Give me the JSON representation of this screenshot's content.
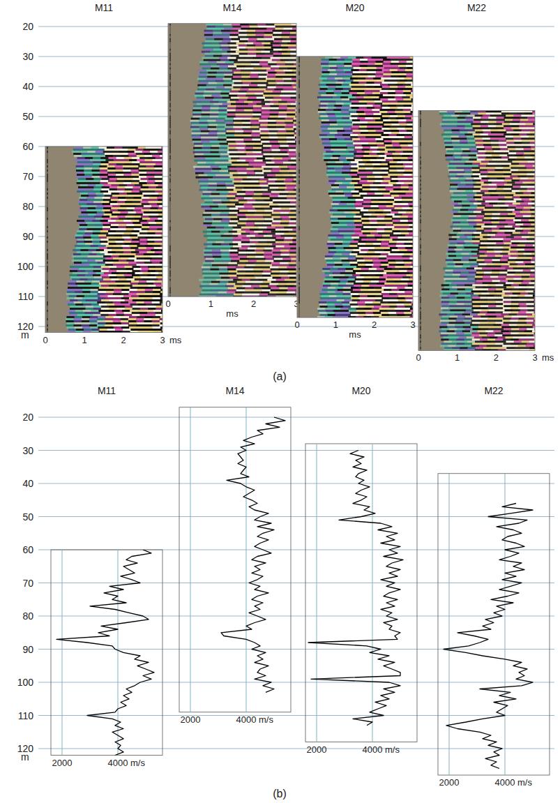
{
  "chart_data": [
    {
      "type": "image",
      "caption": "(a)",
      "grid": true,
      "ylim": [
        20,
        120
      ],
      "yticks": [
        20,
        30,
        40,
        50,
        60,
        70,
        80,
        90,
        100,
        110,
        120
      ],
      "y_label": "m",
      "panels": [
        {
          "title": "M11",
          "ylim": [
            60,
            122
          ],
          "xlim": [
            0,
            3
          ],
          "xticks": [
            0,
            1,
            2,
            3
          ],
          "x_label": "ms"
        },
        {
          "title": "M14",
          "ylim": [
            19,
            110
          ],
          "xlim": [
            0,
            3
          ],
          "xticks": [
            0,
            1,
            2,
            3
          ],
          "x_label": "ms"
        },
        {
          "title": "M20",
          "ylim": [
            30,
            117
          ],
          "xlim": [
            0,
            3
          ],
          "xticks": [
            0,
            1,
            2,
            3
          ],
          "x_label": "ms"
        },
        {
          "title": "M22",
          "ylim": [
            48,
            128
          ],
          "xlim": [
            0,
            3
          ],
          "xticks": [
            0,
            1,
            2,
            3
          ],
          "x_label": "ms"
        }
      ]
    },
    {
      "type": "line",
      "caption": "(b)",
      "grid": true,
      "ylim": [
        20,
        120
      ],
      "yticks": [
        20,
        30,
        40,
        50,
        60,
        70,
        80,
        90,
        100,
        110,
        120
      ],
      "y_label": "m",
      "panels": [
        {
          "title": "M11",
          "ylim": [
            60,
            122
          ],
          "xlim": [
            1600,
            5600
          ],
          "xticks": [
            2000,
            {
              "value": 4000,
              "label": "4000 m/s"
            }
          ],
          "color": "#000000",
          "depth": [
            60,
            61,
            62,
            63,
            64,
            65,
            66,
            67,
            68,
            69,
            70,
            71,
            72,
            73,
            74,
            75,
            76,
            77,
            78,
            79,
            80,
            81,
            82,
            83,
            84,
            85,
            86,
            87,
            88,
            89,
            90,
            91,
            92,
            93,
            94,
            95,
            96,
            97,
            98,
            99,
            100,
            101,
            102,
            103,
            104,
            105,
            106,
            107,
            108,
            109,
            110,
            111,
            112,
            113,
            114,
            115,
            116,
            117,
            118,
            119,
            120,
            121,
            122
          ],
          "values": [
            4900,
            5200,
            4500,
            4300,
            4700,
            4200,
            4400,
            4600,
            4100,
            4500,
            4800,
            3700,
            4200,
            3500,
            4000,
            3800,
            4300,
            3000,
            3900,
            4400,
            4900,
            5100,
            4300,
            3400,
            4000,
            3300,
            3700,
            1800,
            2900,
            3800,
            3900,
            4200,
            4800,
            4600,
            5100,
            4700,
            5000,
            5300,
            4900,
            5200,
            4800,
            4600,
            4300,
            4500,
            4200,
            4400,
            4100,
            4300,
            4000,
            3900,
            2900,
            3800,
            4100,
            3900,
            4200,
            3800,
            4000,
            4200,
            3900,
            4100,
            4000,
            4200,
            3900
          ]
        },
        {
          "title": "M14",
          "ylim": [
            17,
            109
          ],
          "xlim": [
            1600,
            5600
          ],
          "xticks": [
            2000,
            {
              "value": 4000,
              "label": "4000 m/s"
            }
          ],
          "color": "#000000",
          "depth": [
            20,
            21,
            22,
            23,
            24,
            25,
            26,
            27,
            28,
            29,
            30,
            31,
            32,
            33,
            34,
            35,
            36,
            37,
            38,
            39,
            40,
            41,
            42,
            43,
            44,
            45,
            46,
            47,
            48,
            49,
            50,
            51,
            52,
            53,
            54,
            55,
            56,
            57,
            58,
            59,
            60,
            61,
            62,
            63,
            64,
            65,
            66,
            67,
            68,
            69,
            70,
            71,
            72,
            73,
            74,
            75,
            76,
            77,
            78,
            79,
            80,
            81,
            82,
            83,
            84,
            85,
            86,
            87,
            88,
            89,
            90,
            91,
            92,
            93,
            94,
            95,
            96,
            97,
            98,
            99,
            100,
            101,
            102,
            103
          ],
          "values": [
            5000,
            5400,
            4700,
            5200,
            4400,
            4600,
            4200,
            3900,
            4300,
            3800,
            4000,
            3700,
            3800,
            3900,
            3700,
            4000,
            3900,
            3800,
            4100,
            3300,
            3800,
            4000,
            4300,
            4100,
            3900,
            4200,
            4400,
            4100,
            4300,
            4800,
            4500,
            4300,
            4900,
            4400,
            5000,
            4600,
            4400,
            4800,
            4500,
            4300,
            4600,
            4900,
            4400,
            4200,
            4700,
            4300,
            4500,
            4200,
            4600,
            4400,
            4100,
            4500,
            4300,
            4800,
            4400,
            4200,
            4600,
            4300,
            4500,
            4100,
            4400,
            4700,
            4300,
            4000,
            4200,
            3100,
            3200,
            4000,
            4300,
            4500,
            4200,
            4700,
            4400,
            4600,
            4300,
            4800,
            4500,
            4400,
            4700,
            4300,
            4900,
            4600,
            5000,
            4700
          ]
        },
        {
          "title": "M20",
          "ylim": [
            28,
            118
          ],
          "xlim": [
            1600,
            5600
          ],
          "xticks": [
            2000,
            {
              "value": 4000,
              "label": "4000 m/s"
            }
          ],
          "color": "#000000",
          "depth": [
            30,
            31,
            32,
            33,
            34,
            35,
            36,
            37,
            38,
            39,
            40,
            41,
            42,
            43,
            44,
            45,
            46,
            47,
            48,
            49,
            50,
            51,
            52,
            53,
            54,
            55,
            56,
            57,
            58,
            59,
            60,
            61,
            62,
            63,
            64,
            65,
            66,
            67,
            68,
            69,
            70,
            71,
            72,
            73,
            74,
            75,
            76,
            77,
            78,
            79,
            80,
            81,
            82,
            83,
            84,
            85,
            86,
            87,
            88,
            89,
            90,
            91,
            92,
            93,
            94,
            95,
            96,
            97,
            98,
            99,
            100,
            101,
            102,
            103,
            104,
            105,
            106,
            107,
            108,
            109,
            110,
            111,
            112,
            113
          ],
          "values": [
            3500,
            3200,
            3700,
            3400,
            3600,
            3300,
            3800,
            3500,
            3400,
            3700,
            3500,
            3900,
            3600,
            3400,
            3800,
            3600,
            3300,
            3900,
            3700,
            4100,
            3600,
            2800,
            4300,
            4700,
            4200,
            4900,
            4500,
            4800,
            4300,
            5000,
            4600,
            4900,
            4400,
            5100,
            4700,
            4500,
            5000,
            4600,
            4900,
            4300,
            4800,
            4500,
            5000,
            4600,
            4400,
            4900,
            4500,
            4800,
            4300,
            4700,
            4500,
            4900,
            4400,
            4700,
            4600,
            5000,
            4800,
            4900,
            1700,
            3800,
            4300,
            3900,
            4600,
            4200,
            4800,
            4400,
            4700,
            5000,
            5000,
            1800,
            4600,
            5000,
            4400,
            4800,
            4300,
            4600,
            4100,
            4500,
            4200,
            3900,
            4400,
            3300,
            4000,
            3800
          ]
        },
        {
          "title": "M22",
          "ylim": [
            37,
            128
          ],
          "xlim": [
            1600,
            5600
          ],
          "xticks": [
            2000,
            {
              "value": 4000,
              "label": "4000 m/s"
            }
          ],
          "color": "#000000",
          "depth": [
            46,
            47,
            48,
            49,
            50,
            51,
            52,
            53,
            54,
            55,
            56,
            57,
            58,
            59,
            60,
            61,
            62,
            63,
            64,
            65,
            66,
            67,
            68,
            69,
            70,
            71,
            72,
            73,
            74,
            75,
            76,
            77,
            78,
            79,
            80,
            81,
            82,
            83,
            84,
            85,
            86,
            87,
            88,
            89,
            90,
            91,
            92,
            93,
            94,
            95,
            96,
            97,
            98,
            99,
            100,
            101,
            102,
            103,
            104,
            105,
            106,
            107,
            108,
            109,
            110,
            111,
            112,
            113,
            114,
            115,
            116,
            117,
            118,
            119,
            120,
            121,
            122,
            123,
            124,
            125,
            126
          ],
          "values": [
            4400,
            3900,
            5000,
            4200,
            3400,
            4800,
            4500,
            3700,
            4300,
            4600,
            4100,
            3900,
            4400,
            4700,
            4000,
            4500,
            4200,
            3800,
            4600,
            4300,
            4700,
            4000,
            4400,
            3900,
            4600,
            4200,
            3800,
            4500,
            4100,
            3500,
            4300,
            3700,
            4000,
            3600,
            3900,
            3300,
            3600,
            3200,
            3500,
            2300,
            2900,
            3400,
            3100,
            2700,
            1800,
            2600,
            3200,
            4000,
            4600,
            4300,
            4800,
            4500,
            4700,
            4400,
            5000,
            4600,
            3100,
            4200,
            3800,
            4400,
            3600,
            4100,
            3900,
            3700,
            4000,
            3200,
            2600,
            1900,
            2300,
            3100,
            3500,
            3200,
            3700,
            3400,
            3900,
            3600,
            3800,
            3300,
            3700,
            3500,
            3800
          ]
        }
      ]
    }
  ]
}
